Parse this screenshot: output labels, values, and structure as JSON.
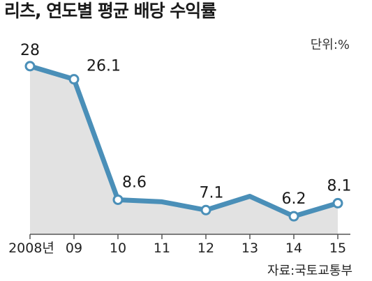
{
  "chart_data": {
    "type": "line",
    "title": "리츠, 연도별 평균 배당 수익률",
    "unit_label": "단위:%",
    "source": "자료:국토교통부",
    "categories": [
      "2008년",
      "09",
      "10",
      "11",
      "12",
      "13",
      "14",
      "15"
    ],
    "series": [
      {
        "values": [
          28,
          26.1,
          8.6,
          8.3,
          7.1,
          9.1,
          6.2,
          8.1
        ]
      }
    ],
    "labels": [
      {
        "index": 0,
        "text": "28"
      },
      {
        "index": 1,
        "text": "26.1"
      },
      {
        "index": 2,
        "text": "8.6"
      },
      {
        "index": 4,
        "text": "7.1"
      },
      {
        "index": 6,
        "text": "6.2"
      },
      {
        "index": 7,
        "text": "8.1"
      }
    ],
    "marked_points": [
      0,
      1,
      2,
      4,
      6,
      7
    ],
    "ylim": [
      5,
      29
    ],
    "area_fill": true,
    "grid": false,
    "colors": {
      "line": "#4a8fb8",
      "area": "#e2e2e2",
      "marker_fill": "#ffffff",
      "axis": "#555555"
    }
  }
}
